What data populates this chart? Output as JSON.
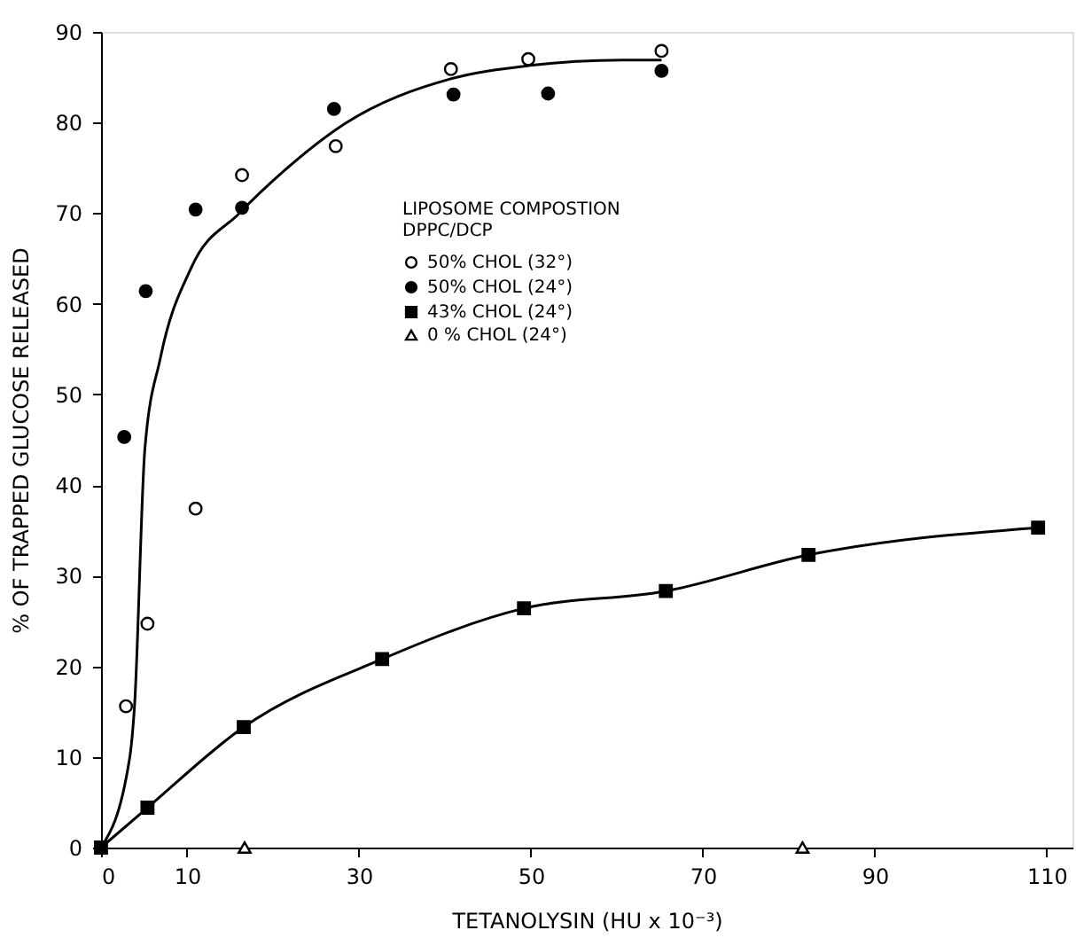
{
  "chart_data": {
    "type": "scatter",
    "xlabel": "TETANOLYSIN (HU x 10⁻³)",
    "ylabel": "% OF TRAPPED GLUCOSE RELEASED",
    "legend_title": [
      "LIPOSOME COMPOSTION",
      "DPPC/DCP"
    ],
    "legend": "top",
    "grid": false,
    "xlim": [
      0,
      113
    ],
    "xticks": [
      0,
      10,
      30,
      50,
      70,
      90,
      110
    ],
    "ylim": [
      0,
      90
    ],
    "yticks": [
      0,
      10,
      20,
      30,
      40,
      50,
      60,
      70,
      80,
      90
    ],
    "series": [
      {
        "name": "50% CHOL (32°)",
        "marker": "circle",
        "color": "#ffffff",
        "x": [
          2.9,
          5.4,
          11.0,
          16.4,
          27.3,
          40.7,
          49.7,
          65.2
        ],
        "values": [
          15.6,
          24.7,
          37.4,
          74.2,
          77.4,
          85.9,
          87.0,
          87.9
        ]
      },
      {
        "name": "50% CHOL (24°)",
        "marker": "circle",
        "color": "#000000",
        "x": [
          2.7,
          5.2,
          11.0,
          16.4,
          27.1,
          41.0,
          52.0,
          65.2
        ],
        "values": [
          45.3,
          61.4,
          70.4,
          70.6,
          81.5,
          83.1,
          83.2,
          85.7
        ]
      },
      {
        "name": "43% CHOL (24°)",
        "type": "line",
        "marker": "square",
        "color": "#000000",
        "x": [
          0,
          5.4,
          16.6,
          32.7,
          49.2,
          65.7,
          82.3,
          109
        ],
        "values": [
          0,
          4.4,
          13.3,
          20.8,
          26.4,
          28.3,
          32.3,
          35.3
        ]
      },
      {
        "name": "0 % CHOL (24°)",
        "marker": "triangle",
        "color": "#ffffff",
        "x": [
          16.7,
          81.6
        ],
        "values": [
          0,
          0
        ]
      },
      {
        "type": "line",
        "marker": "none",
        "color": "#000000",
        "x": [
          0,
          3.3,
          3.9,
          5.1,
          6.9,
          10.5,
          16.1,
          21.2,
          28.4,
          40.6,
          49.9,
          60.6,
          65.2
        ],
        "values": [
          0,
          9.7,
          15.7,
          44,
          54,
          64,
          70,
          74.6,
          79.9,
          84.8,
          86.3,
          86.9,
          86.9
        ]
      }
    ]
  }
}
